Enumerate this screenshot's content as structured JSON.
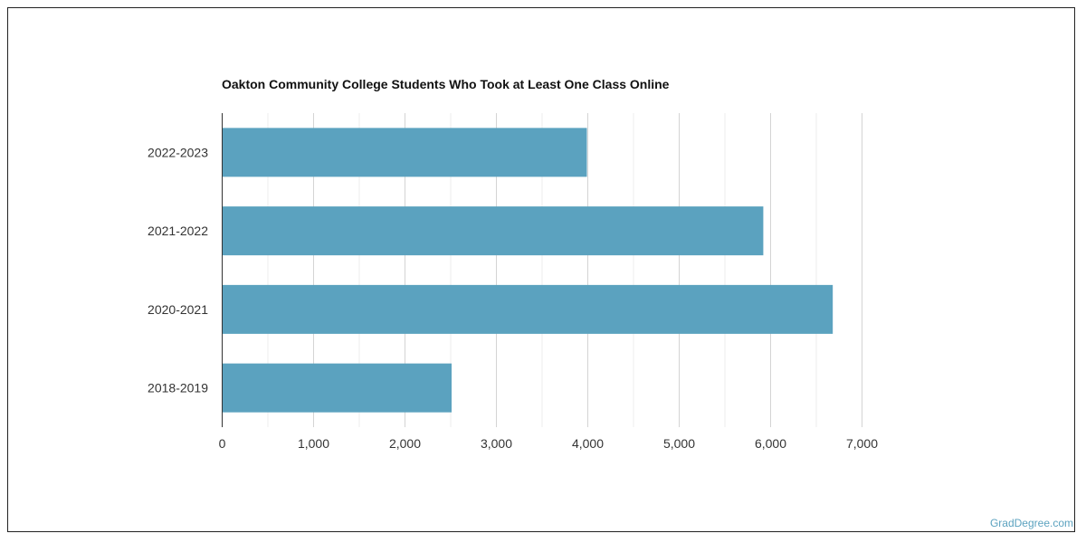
{
  "chart_data": {
    "type": "bar",
    "orientation": "horizontal",
    "title": "Oakton Community College Students Who Took at Least One Class Online",
    "categories": [
      "2022-2023",
      "2021-2022",
      "2020-2021",
      "2018-2019"
    ],
    "values": [
      3990,
      5920,
      6680,
      2510
    ],
    "xlim": [
      0,
      7000
    ],
    "x_ticks": [
      0,
      1000,
      2000,
      3000,
      4000,
      5000,
      6000,
      7000
    ],
    "x_tick_labels": [
      "0",
      "1,000",
      "2,000",
      "3,000",
      "4,000",
      "5,000",
      "6,000",
      "7,000"
    ],
    "grid": true,
    "bar_color": "#5ba2bf",
    "xlabel": "",
    "ylabel": ""
  },
  "watermark": "GradDegree.com"
}
